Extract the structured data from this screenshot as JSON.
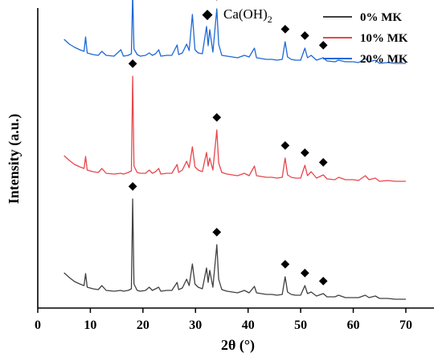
{
  "chart_data": {
    "type": "line",
    "xlabel": "2θ (°)",
    "ylabel": "Intensity (a.u.)",
    "xlim": [
      0,
      70
    ],
    "x_ticks": [
      0,
      10,
      20,
      30,
      40,
      50,
      60,
      70
    ],
    "y_ticks_shown": false,
    "stacked_offset": true,
    "peak_marker": {
      "symbol": "◆",
      "label_main": "Ca(OH)",
      "label_sub": "2"
    },
    "series": [
      {
        "name": "0% MK",
        "color": "#404040",
        "baseline_level": 0.0,
        "x": [
          5,
          6,
          7,
          8,
          8.8,
          9.1,
          9.4,
          10.5,
          11.5,
          12.2,
          13,
          14.5,
          15.8,
          16.3,
          17.2,
          17.8,
          18.05,
          18.3,
          18.9,
          19.5,
          20.5,
          21.2,
          21.8,
          22.4,
          23,
          23.4,
          24.5,
          25.5,
          26.5,
          26.8,
          27.5,
          28.3,
          28.8,
          29.4,
          29.9,
          30.5,
          31.3,
          32.1,
          32.4,
          32.7,
          33.3,
          34.05,
          34.4,
          35,
          36,
          37,
          38,
          39.3,
          40.2,
          41.2,
          41.6,
          42.5,
          43.5,
          44.5,
          45.5,
          46.5,
          47.05,
          47.5,
          48.2,
          49,
          50,
          50.8,
          51.3,
          52,
          53,
          54.3,
          55,
          56.5,
          57.2,
          58.5,
          60,
          61,
          62.3,
          63,
          64.2,
          65,
          66.5,
          68,
          70
        ],
        "y": [
          34,
          28,
          23,
          20,
          18,
          33,
          16,
          14,
          13,
          18,
          12,
          11,
          12,
          11,
          12,
          14,
          126,
          20,
          12,
          11,
          12,
          16,
          12,
          14,
          16,
          11,
          12,
          12,
          22,
          13,
          15,
          26,
          18,
          45,
          20,
          16,
          14,
          40,
          22,
          37,
          16,
          69,
          26,
          13,
          11,
          10,
          9,
          12,
          9,
          17,
          9,
          8,
          7,
          7,
          6,
          7,
          29,
          10,
          7,
          6,
          6,
          18,
          8,
          10,
          5,
          8,
          4,
          4,
          6,
          3,
          3,
          3,
          6,
          3,
          5,
          2,
          2,
          1,
          1
        ]
      },
      {
        "name": "10% MK",
        "color": "#e8474c",
        "baseline_level": 1.0,
        "x": [
          5,
          6,
          7,
          8,
          8.8,
          9.1,
          9.4,
          10.5,
          11.5,
          12.2,
          13,
          14.5,
          15.8,
          16.3,
          17.2,
          17.8,
          18.05,
          18.3,
          18.9,
          19.5,
          20.5,
          21.2,
          21.8,
          22.4,
          23,
          23.4,
          24.5,
          25.5,
          26.5,
          26.8,
          27.5,
          28.3,
          28.8,
          29.4,
          29.9,
          30.5,
          31.3,
          32.1,
          32.4,
          32.7,
          33.3,
          34.05,
          34.4,
          35,
          36,
          37,
          38,
          39.3,
          40.2,
          41.2,
          41.6,
          42.5,
          43.5,
          44.5,
          45.5,
          46.5,
          47.05,
          47.5,
          48.2,
          49,
          50,
          50.8,
          51.3,
          52,
          53,
          54.3,
          55,
          56.5,
          57.2,
          58.5,
          60,
          61,
          62.3,
          63,
          64.2,
          65,
          66.5,
          68,
          70
        ],
        "y": [
          33,
          27,
          22,
          19,
          17,
          32,
          15,
          13,
          12,
          17,
          11,
          10,
          11,
          10,
          12,
          14,
          132,
          20,
          12,
          11,
          11,
          15,
          11,
          13,
          17,
          10,
          11,
          11,
          22,
          12,
          15,
          26,
          18,
          44,
          19,
          15,
          13,
          37,
          20,
          30,
          15,
          65,
          24,
          12,
          10,
          9,
          8,
          11,
          8,
          20,
          8,
          7,
          6,
          6,
          5,
          6,
          30,
          9,
          6,
          5,
          5,
          21,
          8,
          13,
          5,
          9,
          4,
          3,
          6,
          3,
          3,
          2,
          8,
          3,
          5,
          1,
          2,
          1,
          1
        ]
      },
      {
        "name": "20% MK",
        "color": "#1e68d6",
        "baseline_level": 2.0,
        "x": [
          5,
          6,
          7,
          8,
          8.8,
          9.1,
          9.4,
          10.5,
          11.5,
          12.2,
          13,
          14.5,
          15.8,
          16.3,
          17.2,
          17.8,
          18.05,
          18.3,
          18.9,
          19.5,
          20.5,
          21.2,
          21.8,
          22.4,
          23,
          23.4,
          24.5,
          25.5,
          26.5,
          26.8,
          27.5,
          28.3,
          28.8,
          29.4,
          29.9,
          30.5,
          31.3,
          32.1,
          32.4,
          32.7,
          33.3,
          34.05,
          34.4,
          35,
          36,
          37,
          38,
          39.3,
          40.2,
          41.2,
          41.6,
          42.5,
          43.5,
          44.5,
          45.5,
          46.5,
          47.05,
          47.5,
          48.2,
          49,
          50,
          50.8,
          51.3,
          52,
          53,
          54.3,
          55,
          56.5,
          57.2,
          58.5,
          60,
          61,
          62.3,
          63,
          64.2,
          65,
          66.5,
          68,
          70
        ],
        "y": [
          31,
          25,
          21,
          18,
          16,
          34,
          14,
          12,
          11,
          16,
          11,
          10,
          18,
          10,
          11,
          13,
          88,
          19,
          12,
          10,
          11,
          14,
          11,
          13,
          18,
          10,
          11,
          11,
          24,
          12,
          14,
          25,
          17,
          62,
          18,
          14,
          13,
          47,
          23,
          43,
          15,
          69,
          25,
          11,
          10,
          9,
          8,
          11,
          9,
          20,
          8,
          7,
          6,
          6,
          5,
          6,
          28,
          9,
          6,
          5,
          5,
          20,
          8,
          11,
          5,
          8,
          4,
          3,
          5,
          3,
          3,
          2,
          7,
          3,
          5,
          1,
          2,
          1,
          1
        ]
      }
    ],
    "peak_positions": [
      18.05,
      34.05,
      47.05,
      50.8,
      54.3
    ]
  }
}
